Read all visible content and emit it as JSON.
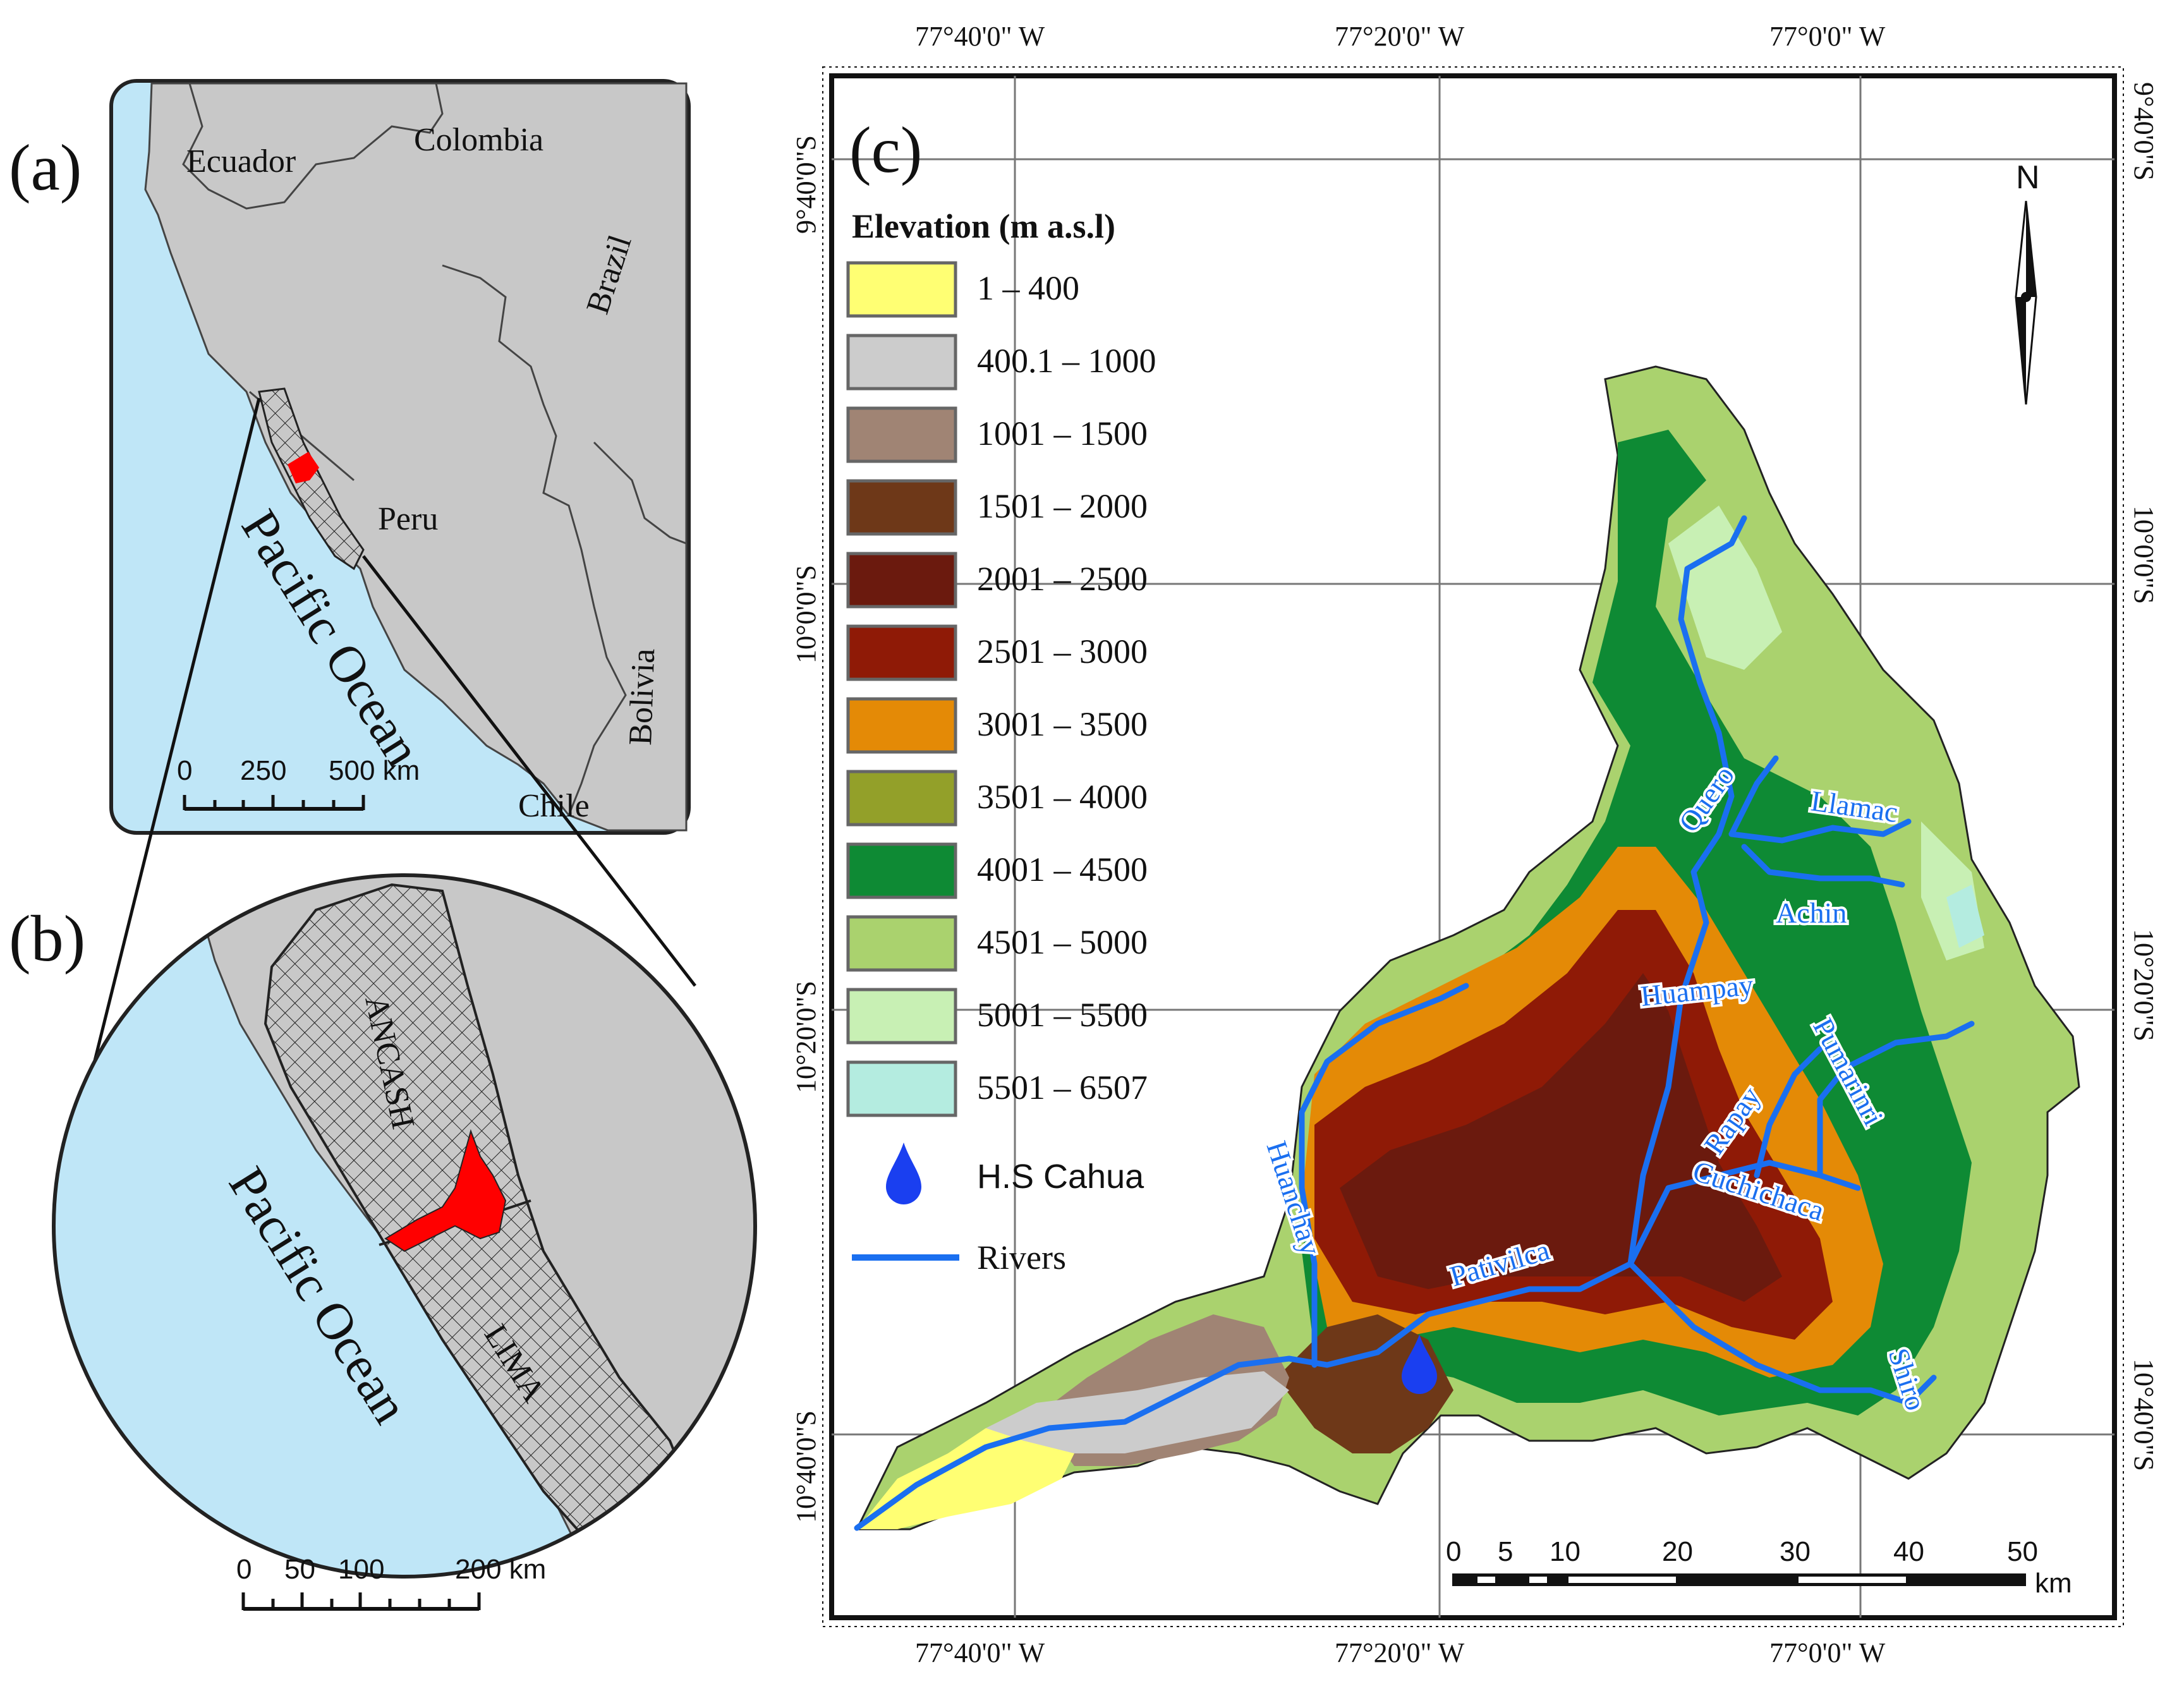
{
  "panels": {
    "a": {
      "letter": "(a)",
      "countries": [
        "Ecuador",
        "Colombia",
        "Brazil",
        "Peru",
        "Bolivia",
        "Chile"
      ],
      "ocean": "Pacific Ocean",
      "scale": {
        "ticks": [
          "0",
          "250",
          "500 km"
        ]
      }
    },
    "b": {
      "letter": "(b)",
      "regions": [
        "ANCASH",
        "LIMA"
      ],
      "ocean": "Pacific Ocean",
      "scale": {
        "ticks": [
          "0",
          "50",
          "100",
          "200 km"
        ]
      }
    },
    "c": {
      "letter": "(c)"
    }
  },
  "coordinates": {
    "top_lon": [
      "77°40'0\" W",
      "77°20'0\" W",
      "77°0'0\" W"
    ],
    "bottom_lon": [
      "77°40'0\" W",
      "77°20'0\" W",
      "77°0'0\" W"
    ],
    "left_lat": [
      "9°40'0\"S",
      "10°0'0\"S",
      "10°20'0\"S",
      "10°40'0\"S"
    ],
    "right_lat": [
      "9°40'0\"S",
      "10°0'0\"S",
      "10°20'0\"S",
      "10°40'0\"S"
    ]
  },
  "legend": {
    "title": "Elevation (m a.s.l)",
    "classes": [
      {
        "label": "1 – 400",
        "color": "#ffff73"
      },
      {
        "label": "400.1 – 1000",
        "color": "#cccccc"
      },
      {
        "label": "1001 – 1500",
        "color": "#a08474"
      },
      {
        "label": "1501 – 2000",
        "color": "#6e3818"
      },
      {
        "label": "2001 – 2500",
        "color": "#6b1a0e"
      },
      {
        "label": "2501 – 3000",
        "color": "#8f1a06"
      },
      {
        "label": "3001 – 3500",
        "color": "#e48a06"
      },
      {
        "label": "3501 – 4000",
        "color": "#93a029"
      },
      {
        "label": "4001 – 4500",
        "color": "#0e8a34"
      },
      {
        "label": "4501 – 5000",
        "color": "#aad26e"
      },
      {
        "label": "5001 – 5500",
        "color": "#c8f0b4"
      },
      {
        "label": "5501 – 6507",
        "color": "#b4ece0"
      }
    ],
    "station": "H.S Cahua",
    "rivers": "Rivers"
  },
  "rivers": [
    "Quero",
    "Llamac",
    "Achin",
    "Huampay",
    "Pumarinri",
    "Rapay",
    "Cuchichaca",
    "Huanchay",
    "Pativilca",
    "Shiro"
  ],
  "north_arrow": "N",
  "scale_c": {
    "ticks": [
      "0",
      "5",
      "10",
      "20",
      "30",
      "40",
      "50"
    ],
    "unit": "km"
  },
  "colors": {
    "ocean": "#bfe6f7",
    "land": "#c8c8c8",
    "study_area": "#ff0000",
    "river": "#1a6ff0"
  }
}
